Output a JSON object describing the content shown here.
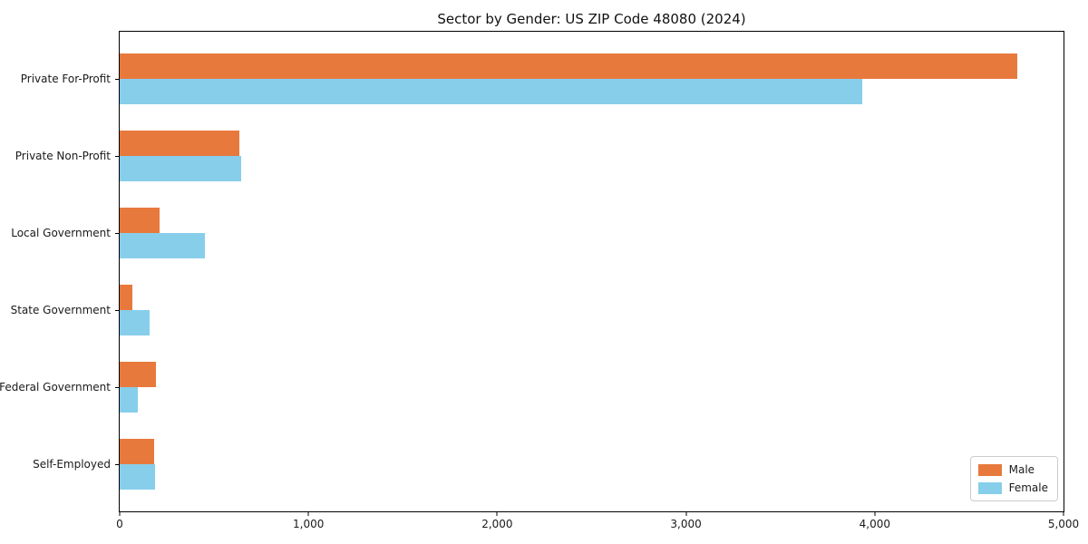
{
  "title": "Sector by Gender: US ZIP Code 48080 (2024)",
  "colors": {
    "male": "#e8793d",
    "female": "#87ceeb",
    "spine": "#000000",
    "legend_border": "#cccccc"
  },
  "x_axis": {
    "ticks": [
      "0",
      "1,000",
      "2,000",
      "3,000",
      "4,000",
      "5,000"
    ],
    "min": 0,
    "max": 5000
  },
  "legend": {
    "position": "lower right",
    "items": [
      {
        "label": "Male",
        "color": "#e8793d"
      },
      {
        "label": "Female",
        "color": "#87ceeb"
      }
    ]
  },
  "chart_data": {
    "type": "bar",
    "orientation": "horizontal",
    "title": "Sector by Gender: US ZIP Code 48080 (2024)",
    "categories": [
      "Private For-Profit",
      "Private Non-Profit",
      "Local Government",
      "State Government",
      "Federal Government",
      "Self-Employed"
    ],
    "series": [
      {
        "name": "Male",
        "color": "#e8793d",
        "values": [
          4755,
          635,
          212,
          66,
          190,
          182
        ]
      },
      {
        "name": "Female",
        "color": "#87ceeb",
        "values": [
          3934,
          643,
          451,
          157,
          96,
          187
        ]
      }
    ],
    "xlabel": "",
    "ylabel": "",
    "xlim": [
      0,
      5000
    ],
    "grid": false,
    "legend_position": "lower right"
  }
}
